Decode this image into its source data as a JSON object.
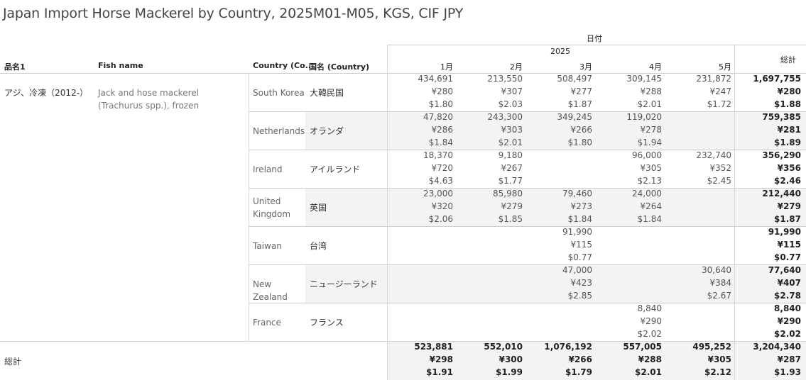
{
  "title": "Japan Import Horse Mackerel by Country, 2025M01-M05, KGS, CIF JPY",
  "header": {
    "date_label": "日付",
    "year_label": "2025",
    "total_label": "総計",
    "col_item": "品名1",
    "col_fish": "Fish name",
    "col_country": "Country (Co..",
    "col_country_jp": "国名 (Country)",
    "months": [
      "1月",
      "2月",
      "3月",
      "4月",
      "5月"
    ]
  },
  "item": {
    "name": "アジ、冷凍（2012-）",
    "fish_name": "Jack and hose mackerel (Trachurus spp.), frozen"
  },
  "rows": [
    {
      "country": "South Korea",
      "country_jp": "大韓民国",
      "months": [
        [
          "434,691",
          "¥280",
          "$1.80"
        ],
        [
          "213,550",
          "¥307",
          "$2.03"
        ],
        [
          "508,497",
          "¥277",
          "$1.87"
        ],
        [
          "309,145",
          "¥288",
          "$2.01"
        ],
        [
          "231,872",
          "¥247",
          "$1.72"
        ]
      ],
      "total": [
        "1,697,755",
        "¥280",
        "$1.88"
      ]
    },
    {
      "country": "Netherlands",
      "country_jp": "オランダ",
      "months": [
        [
          "47,820",
          "¥286",
          "$1.84"
        ],
        [
          "243,300",
          "¥303",
          "$2.01"
        ],
        [
          "349,245",
          "¥266",
          "$1.80"
        ],
        [
          "119,020",
          "¥278",
          "$1.94"
        ],
        [
          "",
          "",
          ""
        ]
      ],
      "total": [
        "759,385",
        "¥281",
        "$1.89"
      ]
    },
    {
      "country": "Ireland",
      "country_jp": "アイルランド",
      "months": [
        [
          "18,370",
          "¥720",
          "$4.63"
        ],
        [
          "9,180",
          "¥267",
          "$1.77"
        ],
        [
          "",
          "",
          ""
        ],
        [
          "96,000",
          "¥305",
          "$2.13"
        ],
        [
          "232,740",
          "¥352",
          "$2.45"
        ]
      ],
      "total": [
        "356,290",
        "¥356",
        "$2.46"
      ]
    },
    {
      "country": "United Kingdom",
      "country_jp": "英国",
      "months": [
        [
          "23,000",
          "¥320",
          "$2.06"
        ],
        [
          "85,980",
          "¥279",
          "$1.85"
        ],
        [
          "79,460",
          "¥273",
          "$1.84"
        ],
        [
          "24,000",
          "¥264",
          "$1.84"
        ],
        [
          "",
          "",
          ""
        ]
      ],
      "total": [
        "212,440",
        "¥279",
        "$1.87"
      ]
    },
    {
      "country": "Taiwan",
      "country_jp": "台湾",
      "months": [
        [
          "",
          "",
          ""
        ],
        [
          "",
          "",
          ""
        ],
        [
          "91,990",
          "¥115",
          "$0.77"
        ],
        [
          "",
          "",
          ""
        ],
        [
          "",
          "",
          ""
        ]
      ],
      "total": [
        "91,990",
        "¥115",
        "$0.77"
      ]
    },
    {
      "country": "New Zealand",
      "country_jp": "ニュージーランド",
      "months": [
        [
          "",
          "",
          ""
        ],
        [
          "",
          "",
          ""
        ],
        [
          "47,000",
          "¥423",
          "$2.85"
        ],
        [
          "",
          "",
          ""
        ],
        [
          "30,640",
          "¥384",
          "$2.67"
        ]
      ],
      "total": [
        "77,640",
        "¥407",
        "$2.78"
      ]
    },
    {
      "country": "France",
      "country_jp": "フランス",
      "months": [
        [
          "",
          "",
          ""
        ],
        [
          "",
          "",
          ""
        ],
        [
          "",
          "",
          ""
        ],
        [
          "8,840",
          "¥290",
          "$2.02"
        ],
        [
          "",
          "",
          ""
        ]
      ],
      "total": [
        "8,840",
        "¥290",
        "$2.02"
      ]
    }
  ],
  "grand_total": {
    "label": "総計",
    "months": [
      [
        "523,881",
        "¥298",
        "$1.91"
      ],
      [
        "552,010",
        "¥300",
        "$1.99"
      ],
      [
        "1,076,192",
        "¥266",
        "$1.79"
      ],
      [
        "557,005",
        "¥288",
        "$2.01"
      ],
      [
        "495,252",
        "¥305",
        "$2.12"
      ]
    ],
    "total": [
      "3,204,340",
      "¥287",
      "$1.93"
    ]
  }
}
